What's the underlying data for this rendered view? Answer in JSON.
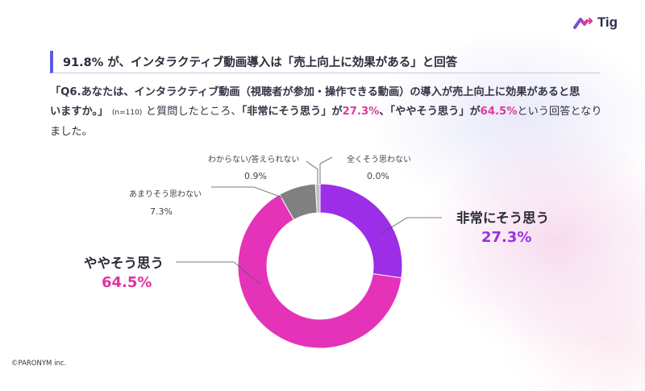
{
  "brand": {
    "logo_text": "Tig"
  },
  "heading": "91.8% が、インタラクティブ動画導入は「売上向上に効果がある」と回答",
  "body": {
    "q1": "「Q6.あなたは、インタラクティブ動画（視聴者が参加・操作できる動画）の導入が売上向上に効果があると思",
    "q2": "いますか。」",
    "n": "(n=110)",
    "mid1": "と質問したところ、",
    "a1": "「非常にそう思う」が",
    "v1": "27.3%",
    "a2": "、「ややそう思う」が",
    "v2": "64.5%",
    "tail1": "という回答となり",
    "tail2": "ました。"
  },
  "chart_data": {
    "type": "pie",
    "donut": true,
    "title": "",
    "categories": [
      "非常にそう思う",
      "ややそう思う",
      "あまりそう思わない",
      "わからない/答えられない",
      "全くそう思わない"
    ],
    "values": [
      27.3,
      64.5,
      7.3,
      0.9,
      0.0
    ],
    "value_labels": [
      "27.3%",
      "64.5%",
      "7.3%",
      "0.9%",
      "0.0%"
    ],
    "colors": [
      "#9b2ee6",
      "#e433b8",
      "#808080",
      "#bfbfbf",
      "#e6e6e6"
    ],
    "unit": "%"
  },
  "copyright": "©PARONYM inc."
}
